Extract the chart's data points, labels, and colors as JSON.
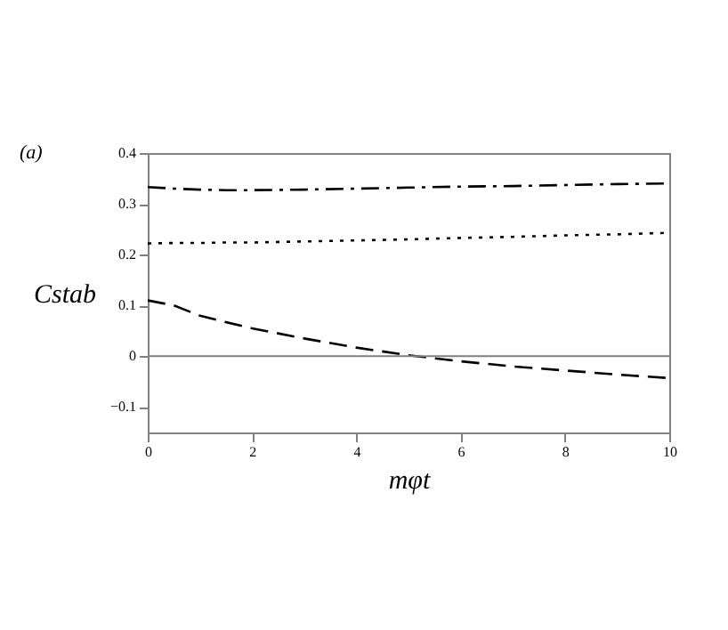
{
  "chart_data": {
    "type": "line",
    "xlabel": "mφt",
    "ylabel": "Cstab",
    "annotations": [
      "(a)"
    ],
    "xlim": [
      0,
      10
    ],
    "xticks": [
      0,
      2,
      4,
      6,
      8,
      10
    ],
    "ylim": [
      -0.15,
      0.4
    ],
    "yticks": [
      -0.1,
      0,
      0.1,
      0.2,
      0.3,
      0.4
    ],
    "x": [
      0,
      0.5,
      1,
      1.5,
      2,
      3,
      4,
      5,
      6,
      7,
      8,
      9,
      10
    ],
    "series": [
      {
        "color": "#000000",
        "line_style": "dashdot",
        "values": [
          0.333,
          0.33,
          0.328,
          0.327,
          0.327,
          0.328,
          0.33,
          0.332,
          0.334,
          0.335,
          0.337,
          0.339,
          0.34
        ]
      },
      {
        "color": "#000000",
        "line_style": "dotted",
        "values": [
          0.222,
          0.223,
          0.223,
          0.224,
          0.224,
          0.226,
          0.228,
          0.23,
          0.233,
          0.235,
          0.238,
          0.24,
          0.243
        ]
      },
      {
        "color": "#000000",
        "line_style": "dashed",
        "values": [
          0.11,
          0.1,
          0.08,
          0.067,
          0.055,
          0.035,
          0.017,
          0.002,
          -0.01,
          -0.02,
          -0.028,
          -0.036,
          -0.043
        ]
      }
    ],
    "ref_lines": [
      {
        "axis": "y",
        "value": 0,
        "color": "#808080"
      }
    ],
    "grid": false
  }
}
